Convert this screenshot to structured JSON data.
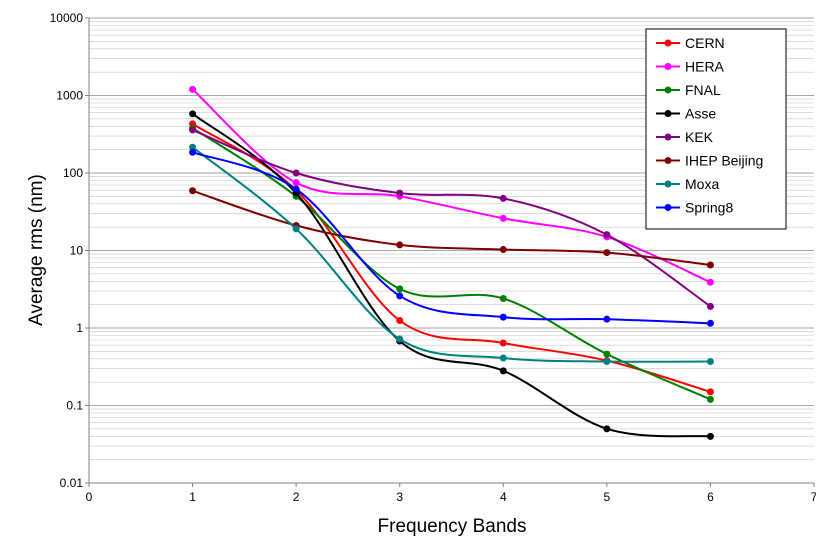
{
  "chart_data": {
    "type": "line",
    "xlabel": "Frequency Bands",
    "ylabel": "Average rms (nm)",
    "xlim": [
      0,
      7
    ],
    "ylim": [
      0.01,
      10000
    ],
    "y_scale": "log",
    "x_ticks": [
      "0",
      "1",
      "2",
      "3",
      "4",
      "5",
      "6",
      "7"
    ],
    "y_ticks": [
      "0.01",
      "0.1",
      "1",
      "10",
      "100",
      "1000",
      "10000"
    ],
    "grid": "horizontal minor and major",
    "legend_position": "top-right",
    "x": [
      1,
      2,
      3,
      4,
      5,
      6
    ],
    "series": [
      {
        "name": "CERN",
        "color": "#ff0000",
        "values": [
          430,
          60,
          1.25,
          0.64,
          0.38,
          0.15
        ]
      },
      {
        "name": "HERA",
        "color": "#ff00ff",
        "values": [
          1200,
          75,
          50,
          26,
          15,
          3.9
        ]
      },
      {
        "name": "FNAL",
        "color": "#008000",
        "values": [
          380,
          50,
          3.2,
          2.4,
          0.46,
          0.12
        ]
      },
      {
        "name": "Asse",
        "color": "#000000",
        "values": [
          580,
          55,
          0.68,
          0.28,
          0.05,
          0.04
        ]
      },
      {
        "name": "KEK",
        "color": "#800080",
        "values": [
          360,
          100,
          55,
          47,
          16,
          1.9
        ]
      },
      {
        "name": "IHEP Beijing",
        "color": "#800000",
        "values": [
          59,
          21,
          11.8,
          10.3,
          9.4,
          6.5
        ]
      },
      {
        "name": "Moxa",
        "color": "#008080",
        "values": [
          215,
          19,
          0.72,
          0.41,
          0.37,
          0.37
        ]
      },
      {
        "name": "Spring8",
        "color": "#0000ff",
        "values": [
          185,
          62,
          2.6,
          1.38,
          1.3,
          1.15
        ]
      }
    ]
  }
}
